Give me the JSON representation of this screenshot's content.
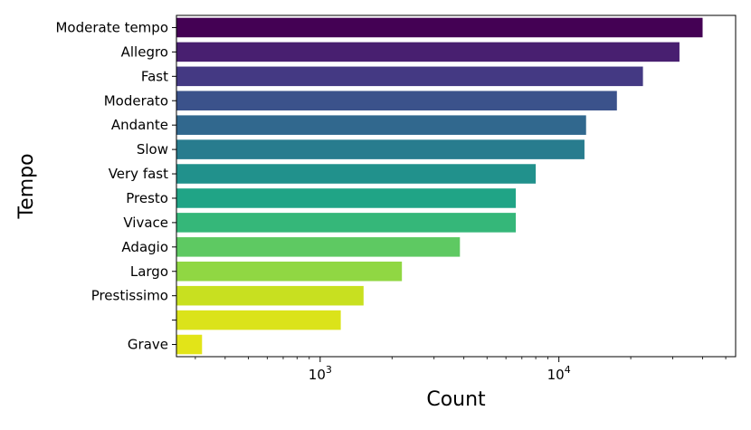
{
  "chart_data": {
    "type": "bar",
    "orientation": "horizontal",
    "xlabel": "Count",
    "ylabel": "Tempo",
    "xscale": "log",
    "xlim": [
      250,
      55000
    ],
    "x_ticks": [
      {
        "value": 1000,
        "base": "10",
        "exp": "3"
      },
      {
        "value": 10000,
        "base": "10",
        "exp": "4"
      }
    ],
    "grid": false,
    "legend": "none",
    "categories": [
      "Moderate tempo",
      "Allegro",
      "Fast",
      "Moderato",
      "Andante",
      "Slow",
      "Very fast",
      "Presto",
      "Vivace",
      "Adagio",
      "Largo",
      "Prestissimo",
      "",
      "Grave"
    ],
    "values": [
      40000,
      32000,
      22500,
      17500,
      13000,
      12800,
      8000,
      6600,
      6600,
      3850,
      2200,
      1520,
      1220,
      320
    ],
    "colors": [
      "#440154",
      "#481f70",
      "#443983",
      "#3b528b",
      "#31688e",
      "#287c8e",
      "#21918c",
      "#20a486",
      "#35b779",
      "#5ec962",
      "#90d743",
      "#c8e020",
      "#dbe31a",
      "#e2e418"
    ]
  }
}
